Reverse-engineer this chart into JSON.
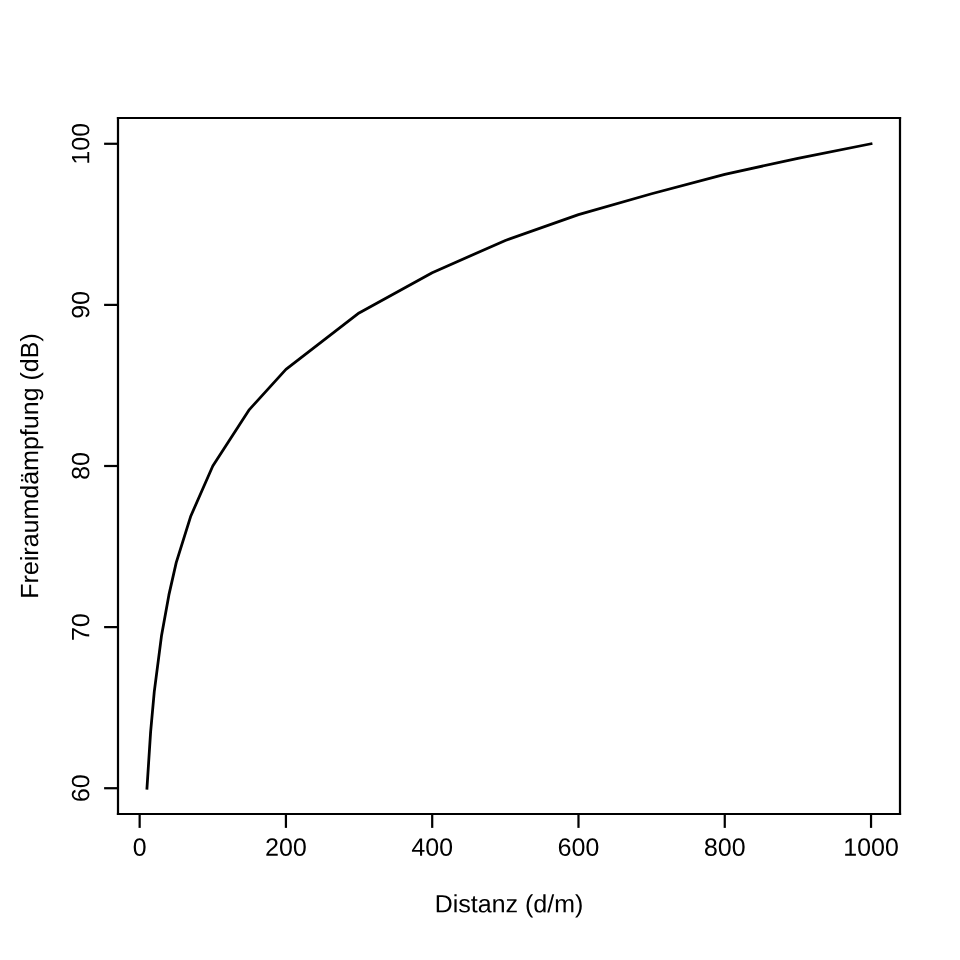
{
  "chart_data": {
    "type": "line",
    "xlabel": "Distanz (d/m)",
    "ylabel": "Freiraumdämpfung (dB)",
    "series": [
      {
        "color": "#000000",
        "x": [
          10,
          15,
          20,
          30,
          40,
          50,
          70,
          100,
          150,
          200,
          300,
          400,
          500,
          600,
          700,
          800,
          900,
          1000
        ],
        "values": [
          60,
          63.5,
          66.0,
          69.5,
          72.0,
          74.0,
          76.9,
          80.0,
          83.5,
          86.0,
          89.5,
          92.0,
          94.0,
          95.6,
          96.9,
          98.1,
          99.1,
          100
        ]
      }
    ],
    "xlim": [
      -29.6,
      1039.6
    ],
    "ylim": [
      58.4,
      101.6
    ],
    "xticks": [
      0,
      200,
      400,
      600,
      800,
      1000
    ],
    "yticks": [
      60,
      70,
      80,
      90,
      100
    ],
    "grid": false,
    "legend": false,
    "marker": "none",
    "line_style": "solid"
  }
}
